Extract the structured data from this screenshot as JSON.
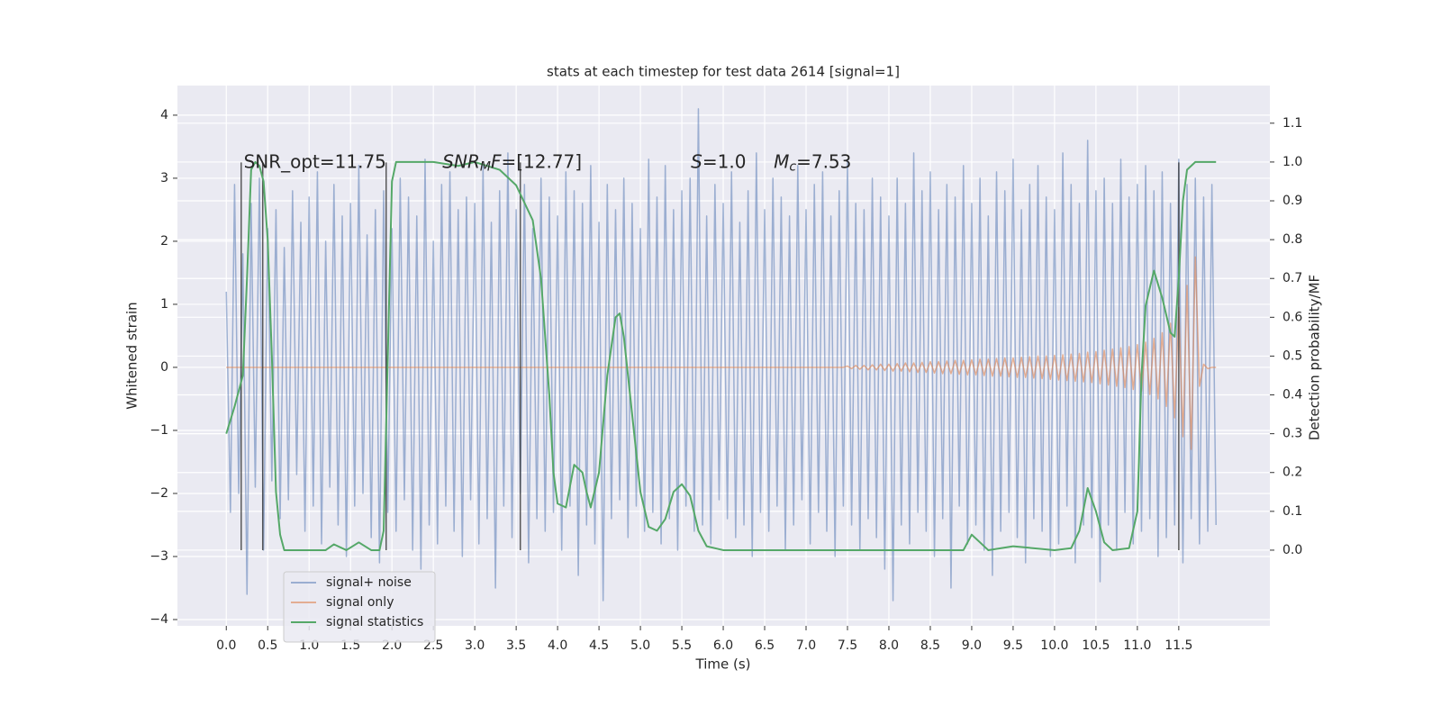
{
  "chart_data": {
    "type": "line",
    "title": "stats at each timestep for test data 2614 [signal=1]",
    "xlabel": "Time (s)",
    "ylabel": "Whitened strain",
    "y2label": "Detection probability/MF",
    "xlim": [
      -0.59,
      12.6
    ],
    "ylim": [
      -4.1,
      4.47
    ],
    "y2lim": [
      -0.195,
      1.197
    ],
    "xticks": [
      {
        "value": 0,
        "label": "0.0"
      },
      0.5,
      {
        "value": 1,
        "label": "1.0"
      },
      1.5,
      {
        "value": 2,
        "label": "2.0"
      },
      2.5,
      {
        "value": 3,
        "label": "3.0"
      },
      3.5,
      {
        "value": 4,
        "label": "4.0"
      },
      4.5,
      {
        "value": 5,
        "label": "5.0"
      },
      5.5,
      {
        "value": 6,
        "label": "6.0"
      },
      6.5,
      {
        "value": 7,
        "label": "7.0"
      },
      7.5,
      {
        "value": 8,
        "label": "8.0"
      },
      8.5,
      {
        "value": 9,
        "label": "9.0"
      },
      9.5,
      {
        "value": 10,
        "label": "10.0"
      },
      10.5,
      {
        "value": 11,
        "label": "11.0"
      },
      11.5
    ],
    "yticks": [
      {
        "value": -4,
        "label": "−4"
      },
      {
        "value": -3,
        "label": "−3"
      },
      {
        "value": -2,
        "label": "−2"
      },
      {
        "value": -1,
        "label": "−1"
      },
      0,
      1,
      2,
      3,
      4
    ],
    "y2ticks": [
      {
        "value": 0,
        "label": "0.0"
      },
      0.1,
      0.2,
      0.3,
      0.4,
      0.5,
      0.6,
      0.7,
      0.8,
      0.9,
      {
        "value": 1,
        "label": "1.0"
      },
      1.1
    ],
    "grid": true,
    "legend": "lower left",
    "x": [
      0,
      0.05,
      0.1,
      0.15,
      0.2,
      0.25,
      0.3,
      0.35,
      0.4,
      0.45,
      0.5,
      0.55,
      0.6,
      0.65,
      0.7,
      0.75,
      0.8,
      0.85,
      0.9,
      0.95,
      1,
      1.05,
      1.1,
      1.15,
      1.2,
      1.25,
      1.3,
      1.35,
      1.4,
      1.45,
      1.5,
      1.55,
      1.6,
      1.65,
      1.7,
      1.75,
      1.8,
      1.85,
      1.9,
      1.95,
      2,
      2.05,
      2.1,
      2.15,
      2.2,
      2.25,
      2.3,
      2.35,
      2.4,
      2.45,
      2.5,
      2.55,
      2.6,
      2.65,
      2.7,
      2.75,
      2.8,
      2.85,
      2.9,
      2.95,
      3,
      3.05,
      3.1,
      3.15,
      3.2,
      3.25,
      3.3,
      3.35,
      3.4,
      3.45,
      3.5,
      3.55,
      3.6,
      3.65,
      3.7,
      3.75,
      3.8,
      3.85,
      3.9,
      3.95,
      4,
      4.05,
      4.1,
      4.15,
      4.2,
      4.25,
      4.3,
      4.35,
      4.4,
      4.45,
      4.5,
      4.55,
      4.6,
      4.65,
      4.7,
      4.75,
      4.8,
      4.85,
      4.9,
      4.95,
      5,
      5.05,
      5.1,
      5.15,
      5.2,
      5.25,
      5.3,
      5.35,
      5.4,
      5.45,
      5.5,
      5.55,
      5.6,
      5.65,
      5.7,
      5.75,
      5.8,
      5.85,
      5.9,
      5.95,
      6,
      6.05,
      6.1,
      6.15,
      6.2,
      6.25,
      6.3,
      6.35,
      6.4,
      6.45,
      6.5,
      6.55,
      6.6,
      6.65,
      6.7,
      6.75,
      6.8,
      6.85,
      6.9,
      6.95,
      7,
      7.05,
      7.1,
      7.15,
      7.2,
      7.25,
      7.3,
      7.35,
      7.4,
      7.45,
      7.5,
      7.55,
      7.6,
      7.65,
      7.7,
      7.75,
      7.8,
      7.85,
      7.9,
      7.95,
      8,
      8.05,
      8.1,
      8.15,
      8.2,
      8.25,
      8.3,
      8.35,
      8.4,
      8.45,
      8.5,
      8.55,
      8.6,
      8.65,
      8.7,
      8.75,
      8.8,
      8.85,
      8.9,
      8.95,
      9,
      9.05,
      9.1,
      9.15,
      9.2,
      9.25,
      9.3,
      9.35,
      9.4,
      9.45,
      9.5,
      9.55,
      9.6,
      9.65,
      9.7,
      9.75,
      9.8,
      9.85,
      9.9,
      9.95,
      10,
      10.05,
      10.1,
      10.15,
      10.2,
      10.25,
      10.3,
      10.35,
      10.4,
      10.45,
      10.5,
      10.55,
      10.6,
      10.65,
      10.7,
      10.75,
      10.8,
      10.85,
      10.9,
      10.95,
      11,
      11.05,
      11.1,
      11.15,
      11.2,
      11.25,
      11.3,
      11.35,
      11.4,
      11.45,
      11.5,
      11.55,
      11.6,
      11.65,
      11.7,
      11.75,
      11.8,
      11.85,
      11.9,
      11.95
    ],
    "series": [
      {
        "name": "signal+ noise",
        "color": "#4c72b0",
        "alpha": 0.5,
        "values": [
          1.2,
          -2.3,
          2.9,
          -2.0,
          1.8,
          -3.6,
          2.6,
          -1.9,
          3.0,
          -2.9,
          2.2,
          -1.8,
          2.5,
          -2.4,
          1.9,
          -2.1,
          2.8,
          -1.7,
          2.3,
          -2.6,
          2.7,
          -2.2,
          3.1,
          -2.8,
          2.0,
          -1.9,
          2.9,
          -2.5,
          2.4,
          -3.0,
          2.6,
          -2.2,
          3.2,
          -2.0,
          2.1,
          -2.7,
          2.5,
          -3.1,
          2.8,
          -2.3,
          2.2,
          -2.6,
          3.0,
          -2.1,
          2.7,
          -2.9,
          2.4,
          -3.2,
          3.3,
          -2.5,
          2.0,
          -2.8,
          2.9,
          -2.2,
          3.1,
          -2.6,
          2.5,
          -3.0,
          2.7,
          -2.1,
          2.6,
          -2.8,
          3.2,
          -2.4,
          2.3,
          -3.5,
          2.8,
          -2.2,
          3.4,
          -2.7,
          2.5,
          -2.0,
          2.9,
          -3.1,
          2.2,
          -2.4,
          3.0,
          -2.6,
          2.7,
          -2.3,
          2.4,
          -2.9,
          3.1,
          -2.2,
          2.8,
          -3.3,
          2.6,
          -2.5,
          3.2,
          -2.8,
          2.3,
          -3.7,
          2.9,
          -2.4,
          2.5,
          -2.1,
          3.0,
          -2.7,
          2.6,
          -2.2,
          2.2,
          -2.6,
          3.3,
          -2.3,
          2.7,
          -2.8,
          3.2,
          -2.4,
          2.5,
          -2.9,
          2.8,
          -2.2,
          3.0,
          -2.6,
          4.1,
          -2.5,
          2.4,
          -2.8,
          2.9,
          -2.1,
          2.6,
          -2.4,
          3.1,
          -2.7,
          2.3,
          -2.5,
          2.8,
          -3.0,
          3.4,
          -2.3,
          2.5,
          -2.6,
          3.0,
          -2.2,
          2.7,
          -2.9,
          2.4,
          -2.5,
          3.2,
          -2.1,
          2.5,
          -2.8,
          2.9,
          -2.3,
          3.1,
          -2.6,
          2.4,
          -3.0,
          2.8,
          -2.2,
          3.3,
          -2.5,
          2.6,
          -2.9,
          2.5,
          -2.4,
          3.0,
          -2.7,
          2.7,
          -3.2,
          2.4,
          -3.7,
          3.0,
          -2.5,
          2.6,
          -2.8,
          3.4,
          -2.3,
          2.8,
          -2.6,
          3.1,
          -3.0,
          2.5,
          -2.4,
          2.9,
          -3.5,
          2.7,
          -2.2,
          3.2,
          -2.8,
          2.6,
          -2.5,
          3.0,
          -2.9,
          2.4,
          -3.3,
          3.1,
          -2.6,
          2.8,
          -2.3,
          3.3,
          -2.7,
          2.5,
          -3.1,
          2.9,
          -2.4,
          3.2,
          -2.6,
          2.7,
          -3.0,
          2.5,
          -2.8,
          3.4,
          -2.2,
          2.9,
          -3.1,
          2.6,
          -2.5,
          3.6,
          -2.7,
          2.8,
          -3.4,
          3.0,
          -2.5,
          2.6,
          -2.9,
          3.3,
          -2.3,
          2.7,
          -2.8,
          2.9,
          -2.6,
          3.2,
          -2.4,
          2.8,
          -3.0,
          3.1,
          -2.7,
          2.6,
          -2.5,
          3.3,
          -3.1,
          2.9,
          -2.4,
          3.0,
          -2.8,
          2.7,
          -2.6,
          2.9,
          -2.5
        ]
      },
      {
        "name": "signal only",
        "color": "#dd8452",
        "alpha": 0.6,
        "values": [
          0,
          0,
          0,
          0,
          0,
          0,
          0,
          0,
          0,
          0,
          0,
          0,
          0,
          0,
          0,
          0,
          0,
          0,
          0,
          0,
          0,
          0,
          0,
          0,
          0,
          0,
          0,
          0,
          0,
          0,
          0,
          0,
          0,
          0,
          0,
          0,
          0,
          0,
          0,
          0,
          0,
          0,
          0,
          0,
          0,
          0,
          0,
          0,
          0,
          0,
          0,
          0,
          0,
          0,
          0,
          0,
          0,
          0,
          0,
          0,
          0,
          0,
          0,
          0,
          0,
          0,
          0,
          0,
          0,
          0,
          0,
          0,
          0,
          0,
          0,
          0,
          0,
          0,
          0,
          0,
          0,
          0,
          0,
          0,
          0,
          0,
          0,
          0,
          0,
          0,
          0,
          0,
          0,
          0,
          0,
          0,
          0,
          0,
          0,
          0,
          0,
          0,
          0,
          0,
          0,
          0,
          0,
          0,
          0,
          0,
          0,
          0,
          0,
          0,
          0,
          0,
          0,
          0,
          0,
          0,
          0,
          0,
          0,
          0,
          0,
          0,
          0,
          0,
          0,
          0,
          0,
          0,
          0,
          0,
          0,
          0,
          0,
          0,
          0,
          0,
          0,
          0,
          0,
          0,
          0,
          0,
          0,
          0,
          0,
          0,
          0.02,
          -0.02,
          0.03,
          -0.03,
          0.03,
          -0.04,
          0.04,
          -0.04,
          0.05,
          -0.05,
          0.05,
          -0.06,
          0.06,
          -0.06,
          0.07,
          -0.07,
          0.07,
          -0.08,
          0.08,
          -0.08,
          0.09,
          -0.09,
          0.09,
          -0.1,
          0.1,
          -0.1,
          0.11,
          -0.11,
          0.11,
          -0.12,
          0.12,
          -0.12,
          0.13,
          -0.13,
          0.13,
          -0.14,
          0.14,
          -0.14,
          0.15,
          -0.15,
          0.15,
          -0.16,
          0.16,
          -0.16,
          0.17,
          -0.17,
          0.18,
          -0.18,
          0.18,
          -0.19,
          0.19,
          -0.2,
          0.2,
          -0.21,
          0.21,
          -0.22,
          0.22,
          -0.23,
          0.24,
          -0.24,
          0.25,
          -0.26,
          0.27,
          -0.28,
          0.29,
          -0.3,
          0.31,
          -0.32,
          0.33,
          -0.35,
          0.36,
          -0.38,
          0.4,
          -0.43,
          0.46,
          -0.5,
          0.55,
          -0.62,
          0.7,
          -0.8,
          0.95,
          -1.1,
          1.3,
          -1.3,
          1.75,
          -0.3,
          0.05,
          -0.02,
          0,
          0
        ]
      },
      {
        "name": "signal statistics",
        "color": "#55a868",
        "alpha": 1,
        "axis": "y2",
        "x": [
          0,
          0.1,
          0.2,
          0.25,
          0.3,
          0.35,
          0.4,
          0.45,
          0.5,
          0.55,
          0.6,
          0.65,
          0.7,
          1,
          1.2,
          1.3,
          1.45,
          1.6,
          1.75,
          1.85,
          1.9,
          1.95,
          2,
          2.05,
          2.5,
          2.8,
          3,
          3.3,
          3.5,
          3.7,
          3.8,
          3.9,
          3.95,
          4,
          4.1,
          4.2,
          4.3,
          4.35,
          4.4,
          4.5,
          4.6,
          4.7,
          4.75,
          4.8,
          4.9,
          5,
          5.1,
          5.2,
          5.3,
          5.4,
          5.5,
          5.6,
          5.7,
          5.8,
          6,
          7,
          8,
          8.5,
          8.9,
          9,
          9.1,
          9.2,
          9.5,
          10,
          10.2,
          10.3,
          10.4,
          10.5,
          10.6,
          10.7,
          10.9,
          11,
          11.05,
          11.1,
          11.2,
          11.3,
          11.4,
          11.45,
          11.5,
          11.55,
          11.6,
          11.7,
          11.95
        ],
        "values": [
          0.3,
          0.37,
          0.45,
          0.7,
          0.98,
          1.0,
          0.99,
          0.95,
          0.8,
          0.5,
          0.15,
          0.04,
          0.0,
          0.0,
          0.0,
          0.015,
          0.0,
          0.02,
          0.0,
          0.0,
          0.05,
          0.5,
          0.95,
          1.0,
          1.0,
          0.99,
          1.0,
          0.98,
          0.94,
          0.85,
          0.7,
          0.4,
          0.2,
          0.12,
          0.11,
          0.22,
          0.2,
          0.15,
          0.11,
          0.2,
          0.45,
          0.6,
          0.61,
          0.55,
          0.35,
          0.15,
          0.06,
          0.05,
          0.08,
          0.15,
          0.17,
          0.14,
          0.05,
          0.01,
          0.0,
          0.0,
          0.0,
          0.0,
          0.0,
          0.04,
          0.02,
          0.0,
          0.01,
          0.0,
          0.005,
          0.05,
          0.16,
          0.1,
          0.02,
          0.0,
          0.005,
          0.1,
          0.45,
          0.63,
          0.72,
          0.65,
          0.56,
          0.55,
          0.7,
          0.9,
          0.98,
          1.0,
          1.0
        ]
      }
    ],
    "vlines": {
      "x": [
        0.18,
        0.44,
        1.93,
        3.55,
        11.5
      ],
      "ymin": -2.9,
      "ymax": 3.25,
      "color": "#333333"
    },
    "annotations": [
      {
        "x": 0.21,
        "y": 3.36,
        "parts": [
          {
            "text": "SNR_opt=11.75"
          }
        ]
      },
      {
        "x": 2.61,
        "y": 3.36,
        "parts": [
          {
            "text": "SNR",
            "italic": true
          },
          {
            "text": "M",
            "italic": true,
            "sub": true
          },
          {
            "text": "F",
            "italic": true
          },
          {
            "text": "=[12.77]"
          }
        ]
      },
      {
        "x": 5.61,
        "y": 3.36,
        "parts": [
          {
            "text": "S",
            "italic": true
          },
          {
            "text": "=1.0"
          }
        ]
      },
      {
        "x": 6.61,
        "y": 3.36,
        "parts": [
          {
            "text": "M",
            "italic": true
          },
          {
            "text": "c",
            "italic": true,
            "sub": true
          },
          {
            "text": "=7.53"
          }
        ]
      }
    ]
  }
}
